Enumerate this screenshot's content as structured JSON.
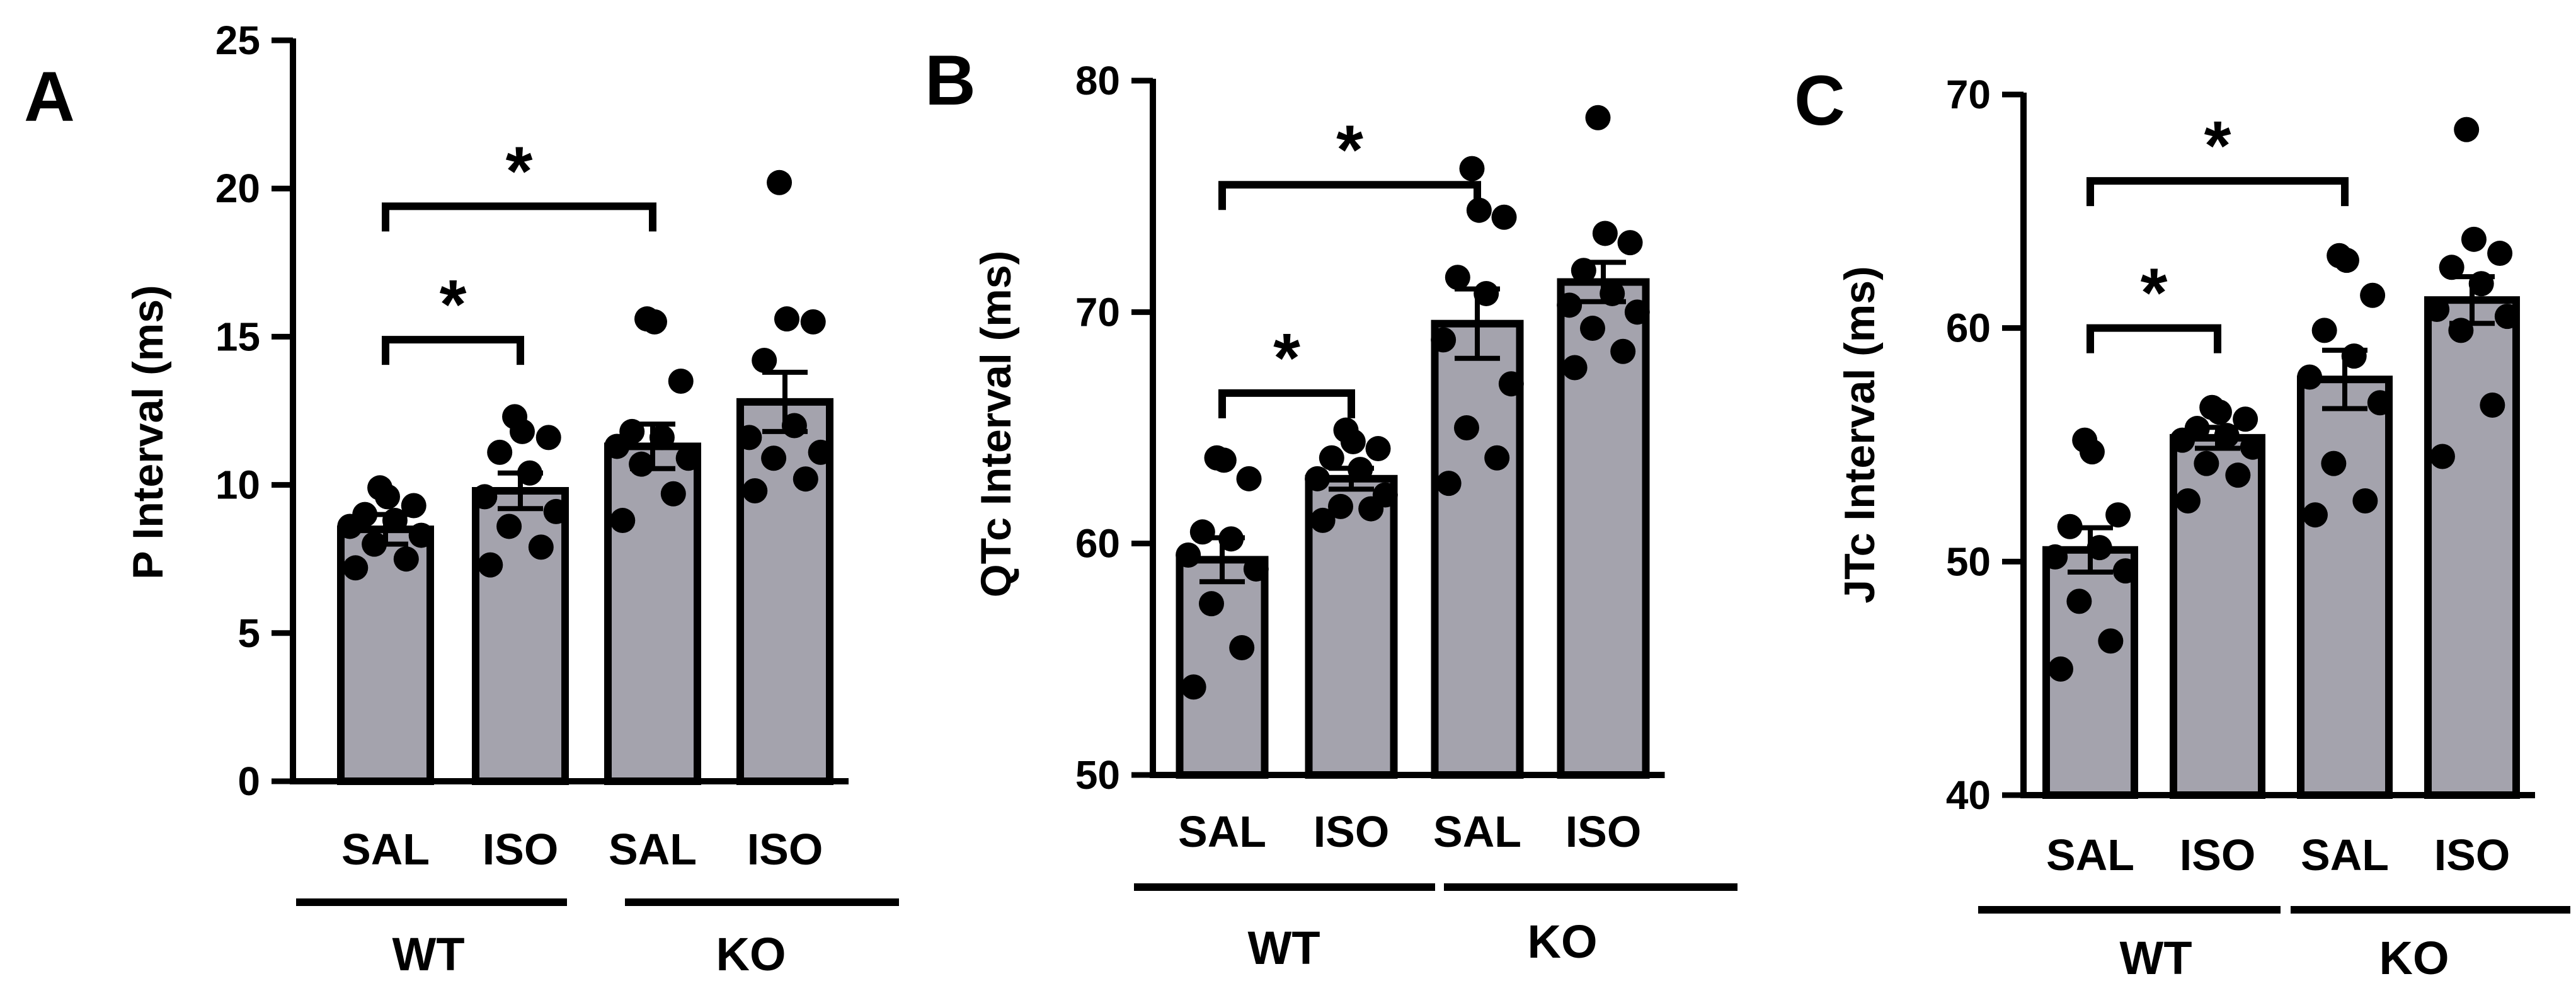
{
  "panels": [
    {
      "letter": "A",
      "chart_data": {
        "type": "bar",
        "title": "",
        "xlabel": "",
        "ylabel": "P Interval (ms)",
        "ylim": [
          0,
          25
        ],
        "yticks": [
          0,
          5,
          10,
          15,
          20,
          25
        ],
        "categories": [
          "SAL",
          "ISO",
          "SAL",
          "ISO"
        ],
        "groups": [
          {
            "label": "WT",
            "categories": [
              0,
              1
            ]
          },
          {
            "label": "KO",
            "categories": [
              2,
              3
            ]
          }
        ],
        "values": [
          8.5,
          9.8,
          11.3,
          12.8
        ],
        "sem": [
          0.5,
          0.6,
          0.75,
          1.0
        ],
        "points": [
          [
            7.2,
            7.5,
            8.0,
            8.3,
            8.6,
            8.8,
            9.0,
            9.3,
            9.6,
            9.9
          ],
          [
            7.3,
            7.9,
            8.6,
            9.1,
            9.6,
            10.4,
            11.1,
            11.6,
            11.8,
            12.3
          ],
          [
            8.8,
            9.7,
            10.7,
            10.9,
            11.3,
            11.6,
            11.8,
            13.5,
            15.5,
            15.6
          ],
          [
            9.8,
            10.2,
            10.9,
            11.1,
            11.6,
            12.0,
            14.2,
            15.5,
            15.6,
            20.2
          ]
        ],
        "significance": [
          {
            "from": 0,
            "to": 1,
            "level": 14.9,
            "label": "*"
          },
          {
            "from": 0,
            "to": 2,
            "level": 19.4,
            "label": "*"
          }
        ]
      }
    },
    {
      "letter": "B",
      "chart_data": {
        "type": "bar",
        "title": "",
        "xlabel": "",
        "ylabel": "QTc Interval (ms)",
        "ylim": [
          50,
          80
        ],
        "yticks": [
          50,
          60,
          70,
          80
        ],
        "categories": [
          "SAL",
          "ISO",
          "SAL",
          "ISO"
        ],
        "groups": [
          {
            "label": "WT",
            "categories": [
              0,
              1
            ]
          },
          {
            "label": "KO",
            "categories": [
              2,
              3
            ]
          }
        ],
        "values": [
          59.3,
          62.8,
          69.5,
          71.3
        ],
        "sem": [
          0.95,
          0.45,
          1.5,
          0.85
        ],
        "points": [
          [
            53.8,
            55.5,
            57.4,
            58.9,
            59.5,
            60.2,
            60.5,
            62.8,
            63.6,
            63.7
          ],
          [
            61.0,
            61.5,
            61.6,
            62.1,
            62.8,
            63.2,
            63.7,
            64.1,
            64.4,
            64.9
          ],
          [
            62.6,
            63.7,
            65.0,
            66.9,
            68.8,
            70.8,
            71.5,
            74.1,
            74.4,
            76.2
          ],
          [
            67.6,
            68.3,
            69.3,
            70.0,
            70.3,
            70.8,
            71.8,
            73.0,
            73.4,
            78.4
          ]
        ],
        "significance": [
          {
            "from": 0,
            "to": 1,
            "level": 66.5,
            "label": "*"
          },
          {
            "from": 0,
            "to": 2,
            "level": 75.5,
            "label": "*"
          }
        ]
      }
    },
    {
      "letter": "C",
      "chart_data": {
        "type": "bar",
        "title": "",
        "xlabel": "",
        "ylabel": "JTc Interval (ms)",
        "ylim": [
          40,
          70
        ],
        "yticks": [
          40,
          50,
          60,
          70
        ],
        "categories": [
          "SAL",
          "ISO",
          "SAL",
          "ISO"
        ],
        "groups": [
          {
            "label": "WT",
            "categories": [
              0,
              1
            ]
          },
          {
            "label": "KO",
            "categories": [
              2,
              3
            ]
          }
        ],
        "values": [
          50.5,
          55.3,
          57.8,
          61.2
        ],
        "sem": [
          0.95,
          0.45,
          1.25,
          1.0
        ],
        "points": [
          [
            45.4,
            46.6,
            48.3,
            49.6,
            50.2,
            50.6,
            51.5,
            52.0,
            54.7,
            55.2
          ],
          [
            52.6,
            53.7,
            54.2,
            54.9,
            55.2,
            55.4,
            55.7,
            56.1,
            56.4,
            56.6
          ],
          [
            52.0,
            52.6,
            54.2,
            56.8,
            57.9,
            58.8,
            59.9,
            61.4,
            62.9,
            63.1
          ],
          [
            54.5,
            56.7,
            59.9,
            60.5,
            60.8,
            61.9,
            62.6,
            63.2,
            63.8,
            68.5
          ]
        ],
        "significance": [
          {
            "from": 0,
            "to": 1,
            "level": 60.0,
            "label": "*"
          },
          {
            "from": 0,
            "to": 2,
            "level": 66.3,
            "label": "*"
          }
        ]
      }
    }
  ]
}
